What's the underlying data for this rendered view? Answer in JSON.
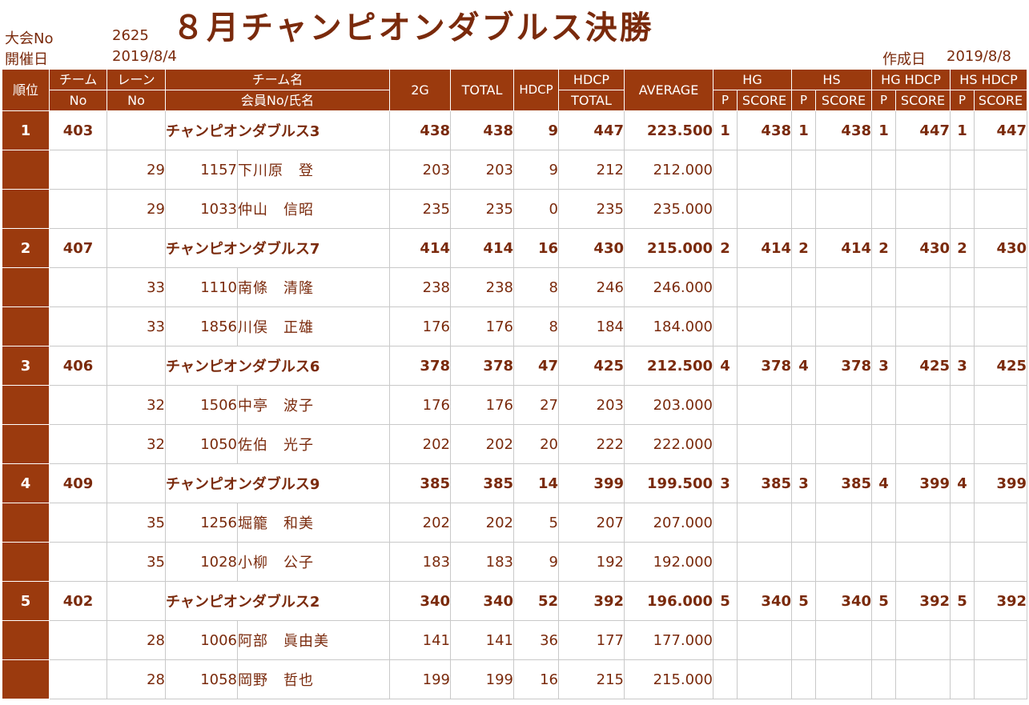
{
  "header": {
    "event_no_label": "大会No",
    "event_no": "2625",
    "date_label": "開催日",
    "date": "2019/8/4",
    "title": "８月チャンピオンダブルス決勝",
    "created_label": "作成日",
    "created_date": "2019/8/8"
  },
  "columns": {
    "rank": "順位",
    "team_no_1": "チーム",
    "team_no_2": "No",
    "lane_1": "レーン",
    "lane_2": "No",
    "team_name_1": "チーム名",
    "team_name_2": "会員No/氏名",
    "g2": "2G",
    "total": "TOTAL",
    "hdcp": "HDCP",
    "hdcp_total_1": "HDCP",
    "hdcp_total_2": "TOTAL",
    "average": "AVERAGE",
    "hg": "HG",
    "hs": "HS",
    "hg_hdcp": "HG HDCP",
    "hs_hdcp": "HS HDCP",
    "p": "P",
    "score": "SCORE"
  },
  "teams": [
    {
      "rank": "1",
      "team_no": "403",
      "name": "チャンピオンダブルス3",
      "g2": "438",
      "total": "438",
      "hdcp": "9",
      "hdcp_total": "447",
      "average": "223.500",
      "hg_p": "1",
      "hg_score": "438",
      "hs_p": "1",
      "hs_score": "438",
      "hgh_p": "1",
      "hgh_score": "447",
      "hsh_p": "1",
      "hsh_score": "447",
      "members": [
        {
          "lane": "29",
          "member_no": "1157",
          "name": "下川原　登",
          "g2": "203",
          "total": "203",
          "hdcp": "9",
          "hdcp_total": "212",
          "average": "212.000"
        },
        {
          "lane": "29",
          "member_no": "1033",
          "name": "仲山　信昭",
          "g2": "235",
          "total": "235",
          "hdcp": "0",
          "hdcp_total": "235",
          "average": "235.000"
        }
      ]
    },
    {
      "rank": "2",
      "team_no": "407",
      "name": "チャンピオンダブルス7",
      "g2": "414",
      "total": "414",
      "hdcp": "16",
      "hdcp_total": "430",
      "average": "215.000",
      "hg_p": "2",
      "hg_score": "414",
      "hs_p": "2",
      "hs_score": "414",
      "hgh_p": "2",
      "hgh_score": "430",
      "hsh_p": "2",
      "hsh_score": "430",
      "members": [
        {
          "lane": "33",
          "member_no": "1110",
          "name": "南條　清隆",
          "g2": "238",
          "total": "238",
          "hdcp": "8",
          "hdcp_total": "246",
          "average": "246.000"
        },
        {
          "lane": "33",
          "member_no": "1856",
          "name": "川俣　正雄",
          "g2": "176",
          "total": "176",
          "hdcp": "8",
          "hdcp_total": "184",
          "average": "184.000"
        }
      ]
    },
    {
      "rank": "3",
      "team_no": "406",
      "name": "チャンピオンダブルス6",
      "g2": "378",
      "total": "378",
      "hdcp": "47",
      "hdcp_total": "425",
      "average": "212.500",
      "hg_p": "4",
      "hg_score": "378",
      "hs_p": "4",
      "hs_score": "378",
      "hgh_p": "3",
      "hgh_score": "425",
      "hsh_p": "3",
      "hsh_score": "425",
      "members": [
        {
          "lane": "32",
          "member_no": "1506",
          "name": "中亭　波子",
          "g2": "176",
          "total": "176",
          "hdcp": "27",
          "hdcp_total": "203",
          "average": "203.000"
        },
        {
          "lane": "32",
          "member_no": "1050",
          "name": "佐伯　光子",
          "g2": "202",
          "total": "202",
          "hdcp": "20",
          "hdcp_total": "222",
          "average": "222.000"
        }
      ]
    },
    {
      "rank": "4",
      "team_no": "409",
      "name": "チャンピオンダブルス9",
      "g2": "385",
      "total": "385",
      "hdcp": "14",
      "hdcp_total": "399",
      "average": "199.500",
      "hg_p": "3",
      "hg_score": "385",
      "hs_p": "3",
      "hs_score": "385",
      "hgh_p": "4",
      "hgh_score": "399",
      "hsh_p": "4",
      "hsh_score": "399",
      "members": [
        {
          "lane": "35",
          "member_no": "1256",
          "name": "堀籠　和美",
          "g2": "202",
          "total": "202",
          "hdcp": "5",
          "hdcp_total": "207",
          "average": "207.000"
        },
        {
          "lane": "35",
          "member_no": "1028",
          "name": "小柳　公子",
          "g2": "183",
          "total": "183",
          "hdcp": "9",
          "hdcp_total": "192",
          "average": "192.000"
        }
      ]
    },
    {
      "rank": "5",
      "team_no": "402",
      "name": "チャンピオンダブルス2",
      "g2": "340",
      "total": "340",
      "hdcp": "52",
      "hdcp_total": "392",
      "average": "196.000",
      "hg_p": "5",
      "hg_score": "340",
      "hs_p": "5",
      "hs_score": "340",
      "hgh_p": "5",
      "hgh_score": "392",
      "hsh_p": "5",
      "hsh_score": "392",
      "members": [
        {
          "lane": "28",
          "member_no": "1006",
          "name": "阿部　眞由美",
          "g2": "141",
          "total": "141",
          "hdcp": "36",
          "hdcp_total": "177",
          "average": "177.000"
        },
        {
          "lane": "28",
          "member_no": "1058",
          "name": "岡野　哲也",
          "g2": "199",
          "total": "199",
          "hdcp": "16",
          "hdcp_total": "215",
          "average": "215.000"
        }
      ]
    }
  ]
}
